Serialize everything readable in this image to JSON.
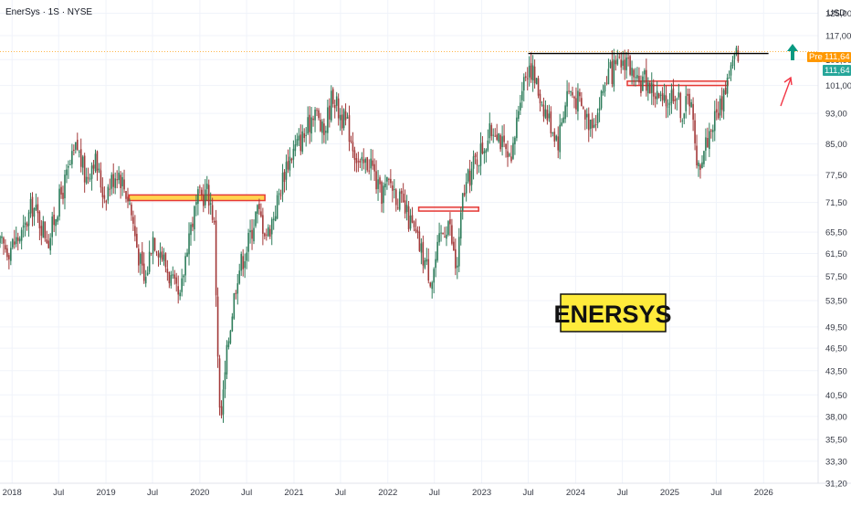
{
  "header": {
    "symbol_title": "EnerSys · 1S · NYSE",
    "currency": "USD"
  },
  "price_badges": {
    "pre_label": "Pre",
    "pre_value": "111,64",
    "last_value": "111,64"
  },
  "watermark": {
    "text": "ENERSYS"
  },
  "colors": {
    "up": "#26a69a",
    "down": "#ef5350",
    "candle_up": "#2e7d5b",
    "candle_down": "#a33a3a",
    "pre_badge": "#ff9800",
    "last_badge": "#26a69a",
    "highlight_fill": "#ffd54f",
    "highlight_border": "#e53935",
    "resistance_line": "#000000",
    "arrow_up": "#089981",
    "arrow_red": "#f23645",
    "watermark_bg": "#ffeb3b"
  },
  "chart_data": {
    "type": "candlestick",
    "title": "EnerSys",
    "interval": "1W",
    "exchange": "NYSE",
    "y_scale": "log",
    "ylim": [
      31.2,
      130
    ],
    "xlim": [
      "2017-11-15",
      "2026-08-01"
    ],
    "x_tick_labels": [
      {
        "date": "2018-01-01",
        "label": "2018"
      },
      {
        "date": "2018-07-01",
        "label": "Jul"
      },
      {
        "date": "2019-01-01",
        "label": "2019"
      },
      {
        "date": "2019-07-01",
        "label": "Jul"
      },
      {
        "date": "2020-01-01",
        "label": "2020"
      },
      {
        "date": "2020-07-01",
        "label": "Jul"
      },
      {
        "date": "2021-01-01",
        "label": "2021"
      },
      {
        "date": "2021-07-01",
        "label": "Jul"
      },
      {
        "date": "2022-01-01",
        "label": "2022"
      },
      {
        "date": "2022-07-01",
        "label": "Jul"
      },
      {
        "date": "2023-01-01",
        "label": "2023"
      },
      {
        "date": "2023-07-01",
        "label": "Jul"
      },
      {
        "date": "2024-01-01",
        "label": "2024"
      },
      {
        "date": "2024-07-01",
        "label": "Jul"
      },
      {
        "date": "2025-01-01",
        "label": "2025"
      },
      {
        "date": "2025-07-01",
        "label": "Jul"
      },
      {
        "date": "2026-01-01",
        "label": "2026"
      }
    ],
    "y_tick_labels": [
      {
        "value": 125.0,
        "label": "125,00"
      },
      {
        "value": 117.0,
        "label": "117,00"
      },
      {
        "value": 109.0,
        "label": "109,00"
      },
      {
        "value": 101.0,
        "label": "101,00"
      },
      {
        "value": 93.0,
        "label": "93,00"
      },
      {
        "value": 85.0,
        "label": "85,00"
      },
      {
        "value": 77.5,
        "label": "77,50"
      },
      {
        "value": 71.5,
        "label": "71,50"
      },
      {
        "value": 65.5,
        "label": "65,50"
      },
      {
        "value": 61.5,
        "label": "61,50"
      },
      {
        "value": 57.5,
        "label": "57,50"
      },
      {
        "value": 53.5,
        "label": "53,50"
      },
      {
        "value": 49.5,
        "label": "49,50"
      },
      {
        "value": 46.5,
        "label": "46,50"
      },
      {
        "value": 43.5,
        "label": "43,50"
      },
      {
        "value": 40.5,
        "label": "40,50"
      },
      {
        "value": 38.0,
        "label": "38,00"
      },
      {
        "value": 35.5,
        "label": "35,50"
      },
      {
        "value": 33.3,
        "label": "33,30"
      },
      {
        "value": 31.2,
        "label": "31,20"
      }
    ],
    "price_path": [
      [
        "2017-11-15",
        63.0
      ],
      [
        "2017-12-20",
        62.5
      ],
      [
        "2018-02-15",
        65.5
      ],
      [
        "2018-03-20",
        71.0
      ],
      [
        "2018-04-25",
        67.0
      ],
      [
        "2018-05-25",
        64.0
      ],
      [
        "2018-06-25",
        70.5
      ],
      [
        "2018-08-01",
        77.0
      ],
      [
        "2018-09-10",
        84.5
      ],
      [
        "2018-10-15",
        76.5
      ],
      [
        "2018-11-15",
        82.0
      ],
      [
        "2018-12-25",
        73.0
      ],
      [
        "2019-02-15",
        79.0
      ],
      [
        "2019-04-01",
        72.0
      ],
      [
        "2019-05-01",
        63.0
      ],
      [
        "2019-06-01",
        56.0
      ],
      [
        "2019-07-01",
        65.0
      ],
      [
        "2019-08-01",
        62.0
      ],
      [
        "2019-09-10",
        57.0
      ],
      [
        "2019-10-15",
        53.0
      ],
      [
        "2019-11-15",
        64.5
      ],
      [
        "2019-12-25",
        72.0
      ],
      [
        "2020-02-01",
        74.0
      ],
      [
        "2020-02-25",
        68.0
      ],
      [
        "2020-03-20",
        36.5
      ],
      [
        "2020-04-20",
        47.5
      ],
      [
        "2020-05-25",
        58.0
      ],
      [
        "2020-07-01",
        62.5
      ],
      [
        "2020-08-10",
        70.0
      ],
      [
        "2020-09-20",
        65.0
      ],
      [
        "2020-10-25",
        71.0
      ],
      [
        "2020-12-01",
        80.0
      ],
      [
        "2021-01-10",
        84.5
      ],
      [
        "2021-02-20",
        88.0
      ],
      [
        "2021-03-20",
        95.0
      ],
      [
        "2021-04-25",
        87.0
      ],
      [
        "2021-06-01",
        99.0
      ],
      [
        "2021-06-20",
        94.0
      ],
      [
        "2021-08-01",
        89.0
      ],
      [
        "2021-09-15",
        79.0
      ],
      [
        "2021-10-25",
        81.0
      ],
      [
        "2021-12-01",
        73.0
      ],
      [
        "2022-01-10",
        76.0
      ],
      [
        "2022-02-15",
        72.0
      ],
      [
        "2022-04-01",
        67.0
      ],
      [
        "2022-05-10",
        62.0
      ],
      [
        "2022-06-20",
        57.0
      ],
      [
        "2022-07-25",
        64.5
      ],
      [
        "2022-08-25",
        68.0
      ],
      [
        "2022-09-25",
        58.0
      ],
      [
        "2022-10-20",
        73.0
      ],
      [
        "2022-12-01",
        80.0
      ],
      [
        "2023-01-20",
        86.0
      ],
      [
        "2023-02-25",
        90.0
      ],
      [
        "2023-03-25",
        84.0
      ],
      [
        "2023-04-25",
        79.0
      ],
      [
        "2023-06-01",
        100.0
      ],
      [
        "2023-07-05",
        108.0
      ],
      [
        "2023-08-10",
        99.0
      ],
      [
        "2023-09-15",
        92.0
      ],
      [
        "2023-10-25",
        86.0
      ],
      [
        "2023-12-01",
        100.0
      ],
      [
        "2024-01-15",
        96.0
      ],
      [
        "2024-02-20",
        91.0
      ],
      [
        "2024-03-25",
        93.0
      ],
      [
        "2024-05-01",
        104.0
      ],
      [
        "2024-06-10",
        106.0
      ],
      [
        "2024-07-20",
        110.0
      ],
      [
        "2024-08-20",
        100.0
      ],
      [
        "2024-09-25",
        103.0
      ],
      [
        "2024-11-01",
        99.0
      ],
      [
        "2024-12-10",
        95.0
      ],
      [
        "2025-01-20",
        100.0
      ],
      [
        "2025-02-20",
        93.0
      ],
      [
        "2025-03-25",
        99.0
      ],
      [
        "2025-04-15",
        78.0
      ],
      [
        "2025-05-20",
        85.0
      ],
      [
        "2025-06-15",
        90.0
      ],
      [
        "2025-07-20",
        96.0
      ],
      [
        "2025-08-20",
        105.0
      ],
      [
        "2025-09-25",
        112.0
      ]
    ],
    "annotations": [
      {
        "type": "zone",
        "x0": "2019-04-01",
        "x1": "2020-09-10",
        "y0": 71.9,
        "y1": 73.1,
        "style": "yellow-fill"
      },
      {
        "type": "zone",
        "x0": "2022-05-01",
        "x1": "2022-12-20",
        "y0": 69.7,
        "y1": 70.5,
        "style": "red-outline"
      },
      {
        "type": "zone",
        "x0": "2024-07-20",
        "x1": "2025-08-15",
        "y0": 101.0,
        "y1": 102.3,
        "style": "red-outline"
      },
      {
        "type": "hline",
        "x0": "2023-07-01",
        "x1": "2026-01-20",
        "y": 111.0,
        "style": "black"
      },
      {
        "type": "hline-dotted",
        "y": 111.64,
        "style": "orange"
      },
      {
        "type": "arrow",
        "style": "red"
      },
      {
        "type": "arrow",
        "style": "green-up"
      }
    ]
  }
}
